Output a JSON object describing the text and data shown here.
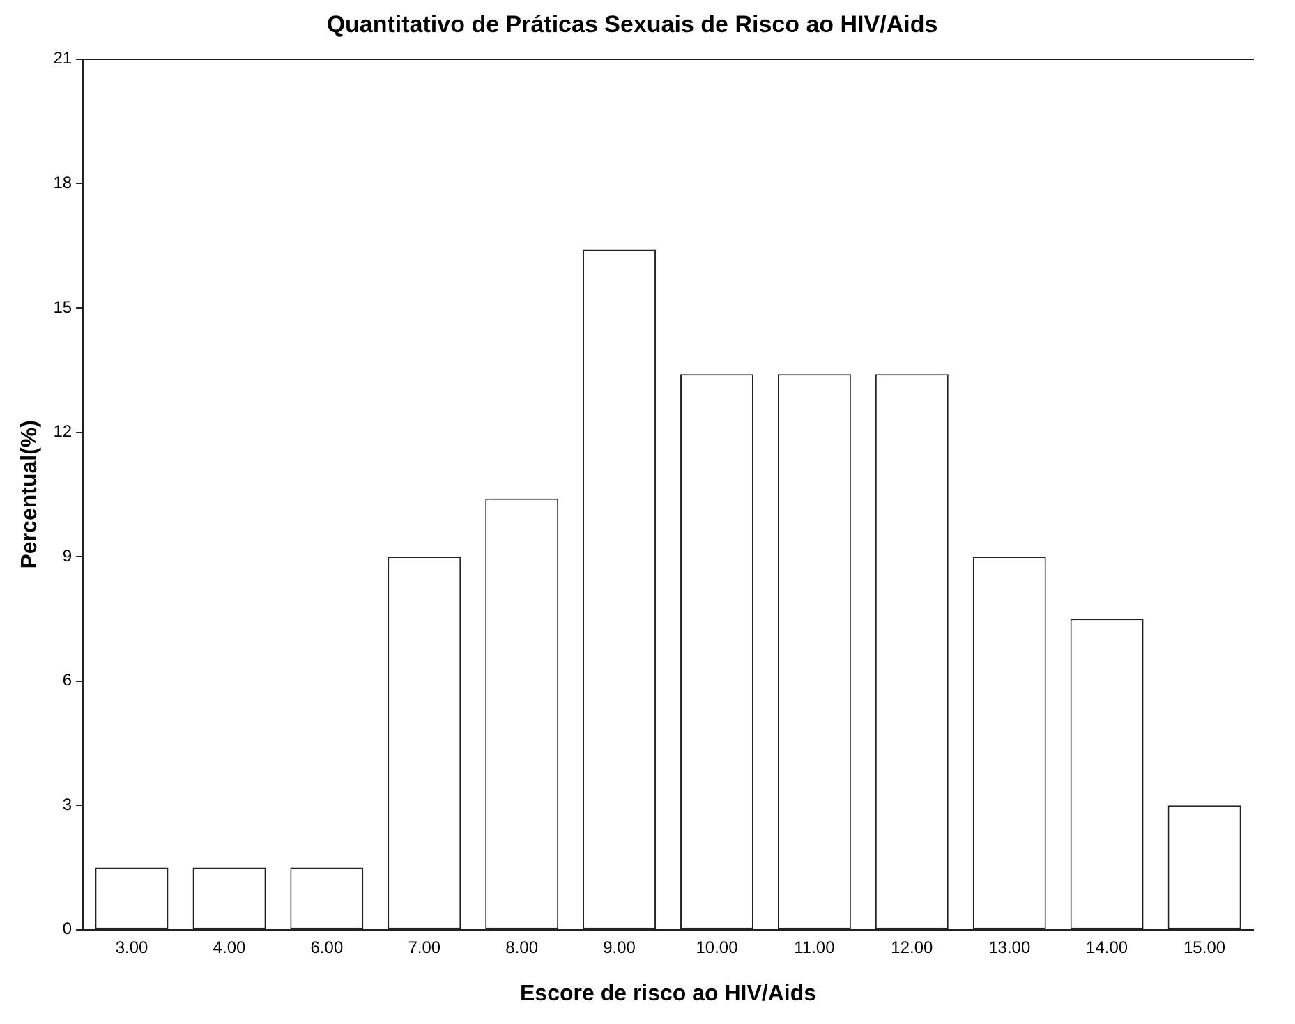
{
  "chart_data": {
    "type": "bar",
    "title": "Quantitativo de Práticas Sexuais de Risco ao HIV/Aids",
    "xlabel": "Escore de risco ao HIV/Aids",
    "ylabel": "Percentual(%)",
    "categories": [
      "3.00",
      "4.00",
      "6.00",
      "7.00",
      "8.00",
      "9.00",
      "10.00",
      "11.00",
      "12.00",
      "13.00",
      "14.00",
      "15.00"
    ],
    "values": [
      1.5,
      1.5,
      1.5,
      9.0,
      10.4,
      16.4,
      13.4,
      13.4,
      13.4,
      9.0,
      7.5,
      3.0
    ],
    "color": "#ffffff",
    "ylim": [
      0,
      21
    ],
    "yticks": [
      0,
      3,
      6,
      9,
      12,
      15,
      18,
      21
    ],
    "grid": false,
    "legend": false
  }
}
